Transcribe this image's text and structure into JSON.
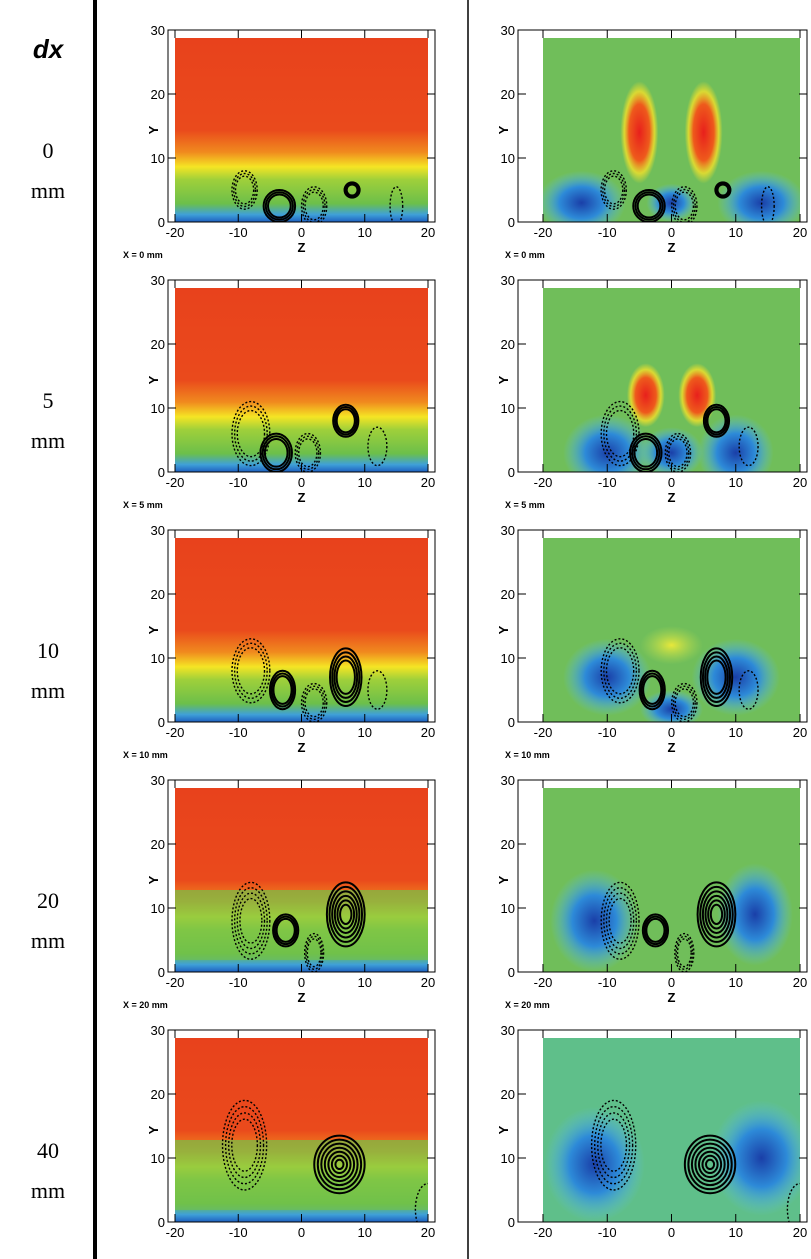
{
  "header": "dx",
  "rows": [
    {
      "value": "0",
      "unit": "mm",
      "note": "X = 0 mm"
    },
    {
      "value": "5",
      "unit": "mm",
      "note": "X = 5 mm"
    },
    {
      "value": "10",
      "unit": "mm",
      "note": "X = 10 mm"
    },
    {
      "value": "20",
      "unit": "mm",
      "note": "X = 20 mm"
    },
    {
      "value": "40",
      "unit": "mm"
    }
  ],
  "axes": {
    "ylabel": "Y",
    "xlabel": "Z",
    "yticks": [
      "0",
      "10",
      "20",
      "30"
    ],
    "xticks": [
      "-20",
      "-10",
      "0",
      "10",
      "20"
    ]
  }
}
